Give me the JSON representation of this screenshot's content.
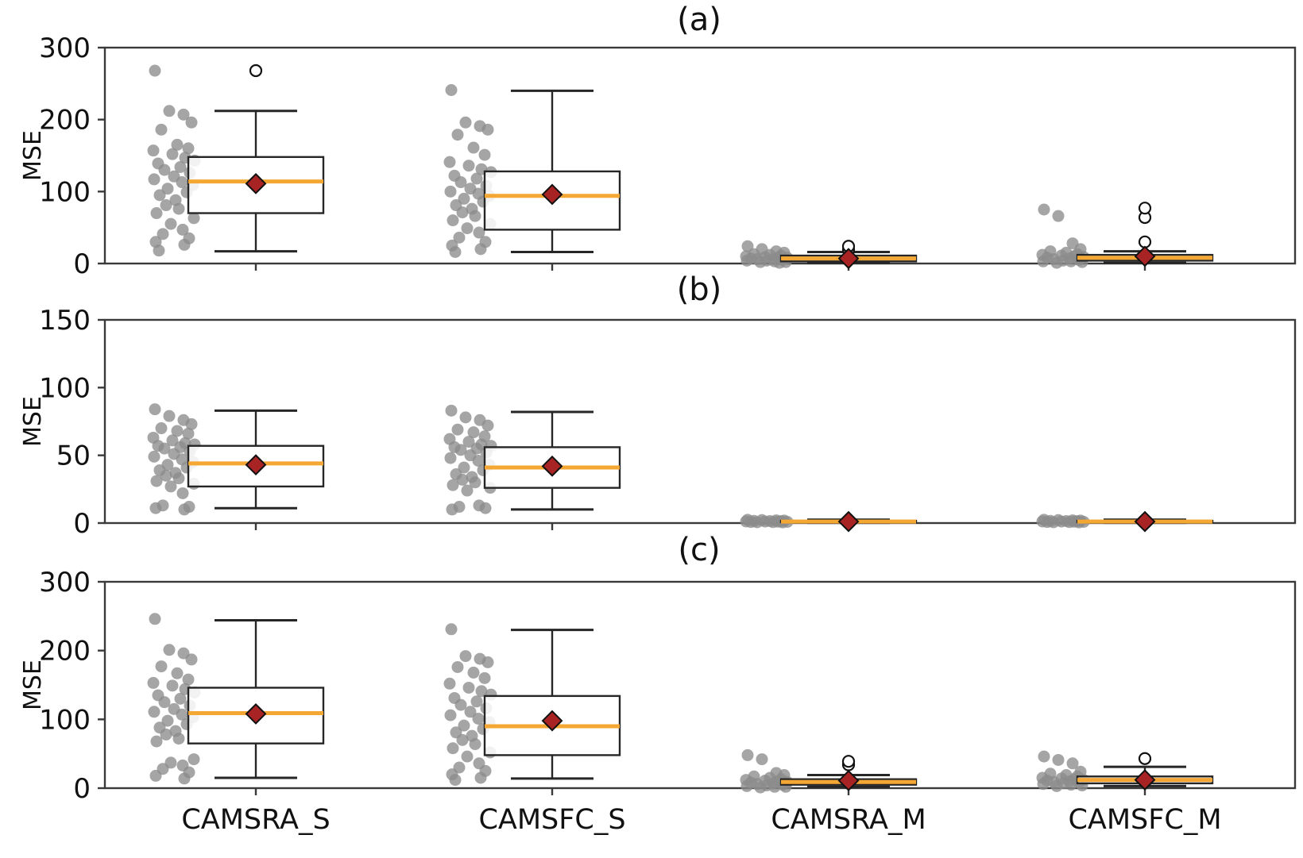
{
  "figure": {
    "ylabel": "MSE",
    "categories": [
      "CAMSRA_S",
      "CAMSFC_S",
      "CAMSRA_M",
      "CAMSFC_M"
    ],
    "colors": {
      "frame": "#3a3a3a",
      "box_edge": "#262626",
      "median": "#F5A733",
      "mean_fill": "#A82424",
      "mean_edge": "#111111",
      "scatter": "#8C8C8C",
      "outlier_edge": "#111111",
      "text": "#111111"
    }
  },
  "chart_data": [
    {
      "type": "boxplot",
      "title": "(a)",
      "ylabel": "MSE",
      "ylim": [
        0,
        300
      ],
      "yticks": [
        0,
        100,
        200,
        300
      ],
      "categories": [
        "CAMSRA_S",
        "CAMSFC_S",
        "CAMSRA_M",
        "CAMSFC_M"
      ],
      "boxes": [
        {
          "category": "CAMSRA_S",
          "whisker_low": 17,
          "q1": 70,
          "median": 114,
          "q3": 148,
          "whisker_high": 212,
          "mean": 111,
          "outliers": [
            268
          ]
        },
        {
          "category": "CAMSFC_S",
          "whisker_low": 16,
          "q1": 47,
          "median": 94,
          "q3": 128,
          "whisker_high": 240,
          "mean": 96,
          "outliers": []
        },
        {
          "category": "CAMSRA_M",
          "whisker_low": 1,
          "q1": 3,
          "median": 7,
          "q3": 11,
          "whisker_high": 16,
          "mean": 7,
          "outliers": [
            19,
            24
          ]
        },
        {
          "category": "CAMSFC_M",
          "whisker_low": 1,
          "q1": 4,
          "median": 8,
          "q3": 12,
          "whisker_high": 17,
          "mean": 10,
          "outliers": [
            30,
            64,
            77
          ]
        }
      ],
      "scatter": [
        [
          268,
          212,
          207,
          196,
          186,
          165,
          160,
          157,
          152,
          147,
          143,
          139,
          134,
          130,
          126,
          121,
          117,
          113,
          109,
          104,
          99,
          95,
          88,
          81,
          76,
          70,
          63,
          55,
          47,
          41,
          35,
          30,
          26,
          18
        ],
        [
          241,
          196,
          191,
          186,
          179,
          161,
          151,
          141,
          136,
          131,
          127,
          122,
          118,
          113,
          108,
          104,
          100,
          97,
          94,
          90,
          86,
          81,
          76,
          71,
          66,
          60,
          55,
          49,
          43,
          36,
          30,
          25,
          20,
          16
        ],
        [
          24,
          20,
          17,
          15,
          13,
          12,
          11,
          10,
          9,
          8,
          8,
          7,
          6,
          6,
          5,
          4,
          4,
          3,
          2,
          2,
          1
        ],
        [
          75,
          66,
          28,
          20,
          17,
          15,
          13,
          12,
          11,
          10,
          9,
          8,
          7,
          6,
          5,
          4,
          3,
          3,
          2,
          1
        ]
      ]
    },
    {
      "type": "boxplot",
      "title": "(b)",
      "ylabel": "MSE",
      "ylim": [
        0,
        150
      ],
      "yticks": [
        0,
        50,
        100,
        150
      ],
      "categories": [
        "CAMSRA_S",
        "CAMSFC_S",
        "CAMSRA_M",
        "CAMSFC_M"
      ],
      "boxes": [
        {
          "category": "CAMSRA_S",
          "whisker_low": 11,
          "q1": 27,
          "median": 44,
          "q3": 57,
          "whisker_high": 83,
          "mean": 43,
          "outliers": []
        },
        {
          "category": "CAMSFC_S",
          "whisker_low": 10,
          "q1": 26,
          "median": 41,
          "q3": 56,
          "whisker_high": 82,
          "mean": 42,
          "outliers": []
        },
        {
          "category": "CAMSRA_M",
          "whisker_low": 0.2,
          "q1": 0.6,
          "median": 1.1,
          "q3": 1.7,
          "whisker_high": 2.5,
          "mean": 1.1,
          "outliers": []
        },
        {
          "category": "CAMSFC_M",
          "whisker_low": 0.2,
          "q1": 0.6,
          "median": 1.1,
          "q3": 1.7,
          "whisker_high": 2.5,
          "mean": 1.1,
          "outliers": []
        }
      ],
      "scatter": [
        [
          84,
          79,
          76,
          73,
          70,
          68,
          66,
          63,
          61,
          59,
          58,
          57,
          56,
          55,
          53,
          51,
          49,
          47,
          45,
          43,
          41,
          39,
          37,
          35,
          33,
          31,
          29,
          27,
          22,
          13,
          12,
          11,
          10
        ],
        [
          83,
          78,
          76,
          72,
          69,
          67,
          64,
          62,
          60,
          58,
          57,
          56,
          55,
          54,
          52,
          50,
          48,
          46,
          43,
          41,
          39,
          36,
          34,
          32,
          30,
          28,
          26,
          24,
          13,
          12,
          11,
          10
        ],
        [
          2.4,
          2.2,
          2.0,
          1.8,
          1.6,
          1.5,
          1.4,
          1.2,
          1.1,
          1.0,
          0.9,
          0.8,
          0.7,
          0.6,
          0.5
        ],
        [
          2.4,
          2.2,
          2.0,
          1.8,
          1.6,
          1.5,
          1.4,
          1.2,
          1.1,
          1.0,
          0.9,
          0.8,
          0.7,
          0.6,
          0.5
        ]
      ]
    },
    {
      "type": "boxplot",
      "title": "(c)",
      "ylabel": "MSE",
      "ylim": [
        0,
        300
      ],
      "yticks": [
        0,
        100,
        200,
        300
      ],
      "categories": [
        "CAMSRA_S",
        "CAMSFC_S",
        "CAMSRA_M",
        "CAMSFC_M"
      ],
      "boxes": [
        {
          "category": "CAMSRA_S",
          "whisker_low": 15,
          "q1": 65,
          "median": 109,
          "q3": 146,
          "whisker_high": 244,
          "mean": 108,
          "outliers": []
        },
        {
          "category": "CAMSFC_S",
          "whisker_low": 14,
          "q1": 48,
          "median": 90,
          "q3": 134,
          "whisker_high": 230,
          "mean": 98,
          "outliers": []
        },
        {
          "category": "CAMSRA_M",
          "whisker_low": 2,
          "q1": 5,
          "median": 9,
          "q3": 13,
          "whisker_high": 19,
          "mean": 11,
          "outliers": [
            34,
            39
          ]
        },
        {
          "category": "CAMSFC_M",
          "whisker_low": 3,
          "q1": 7,
          "median": 12,
          "q3": 17,
          "whisker_high": 31,
          "mean": 12,
          "outliers": [
            43
          ]
        }
      ],
      "scatter": [
        [
          246,
          201,
          196,
          187,
          177,
          167,
          158,
          153,
          149,
          144,
          139,
          135,
          130,
          125,
          120,
          115,
          111,
          107,
          103,
          98,
          93,
          88,
          83,
          78,
          72,
          68,
          42,
          37,
          33,
          28,
          23,
          18,
          14
        ],
        [
          231,
          192,
          188,
          183,
          176,
          168,
          160,
          152,
          146,
          141,
          136,
          131,
          126,
          121,
          116,
          111,
          106,
          101,
          96,
          91,
          86,
          81,
          76,
          70,
          64,
          58,
          52,
          46,
          36,
          30,
          25,
          20,
          15,
          12
        ],
        [
          48,
          42,
          22,
          19,
          17,
          15,
          13,
          12,
          11,
          10,
          9,
          8,
          7,
          6,
          5,
          4,
          3,
          2,
          2,
          1
        ],
        [
          46,
          41,
          36,
          24,
          21,
          19,
          17,
          15,
          14,
          13,
          12,
          11,
          10,
          9,
          8,
          7,
          6,
          5,
          4,
          3
        ]
      ]
    }
  ]
}
